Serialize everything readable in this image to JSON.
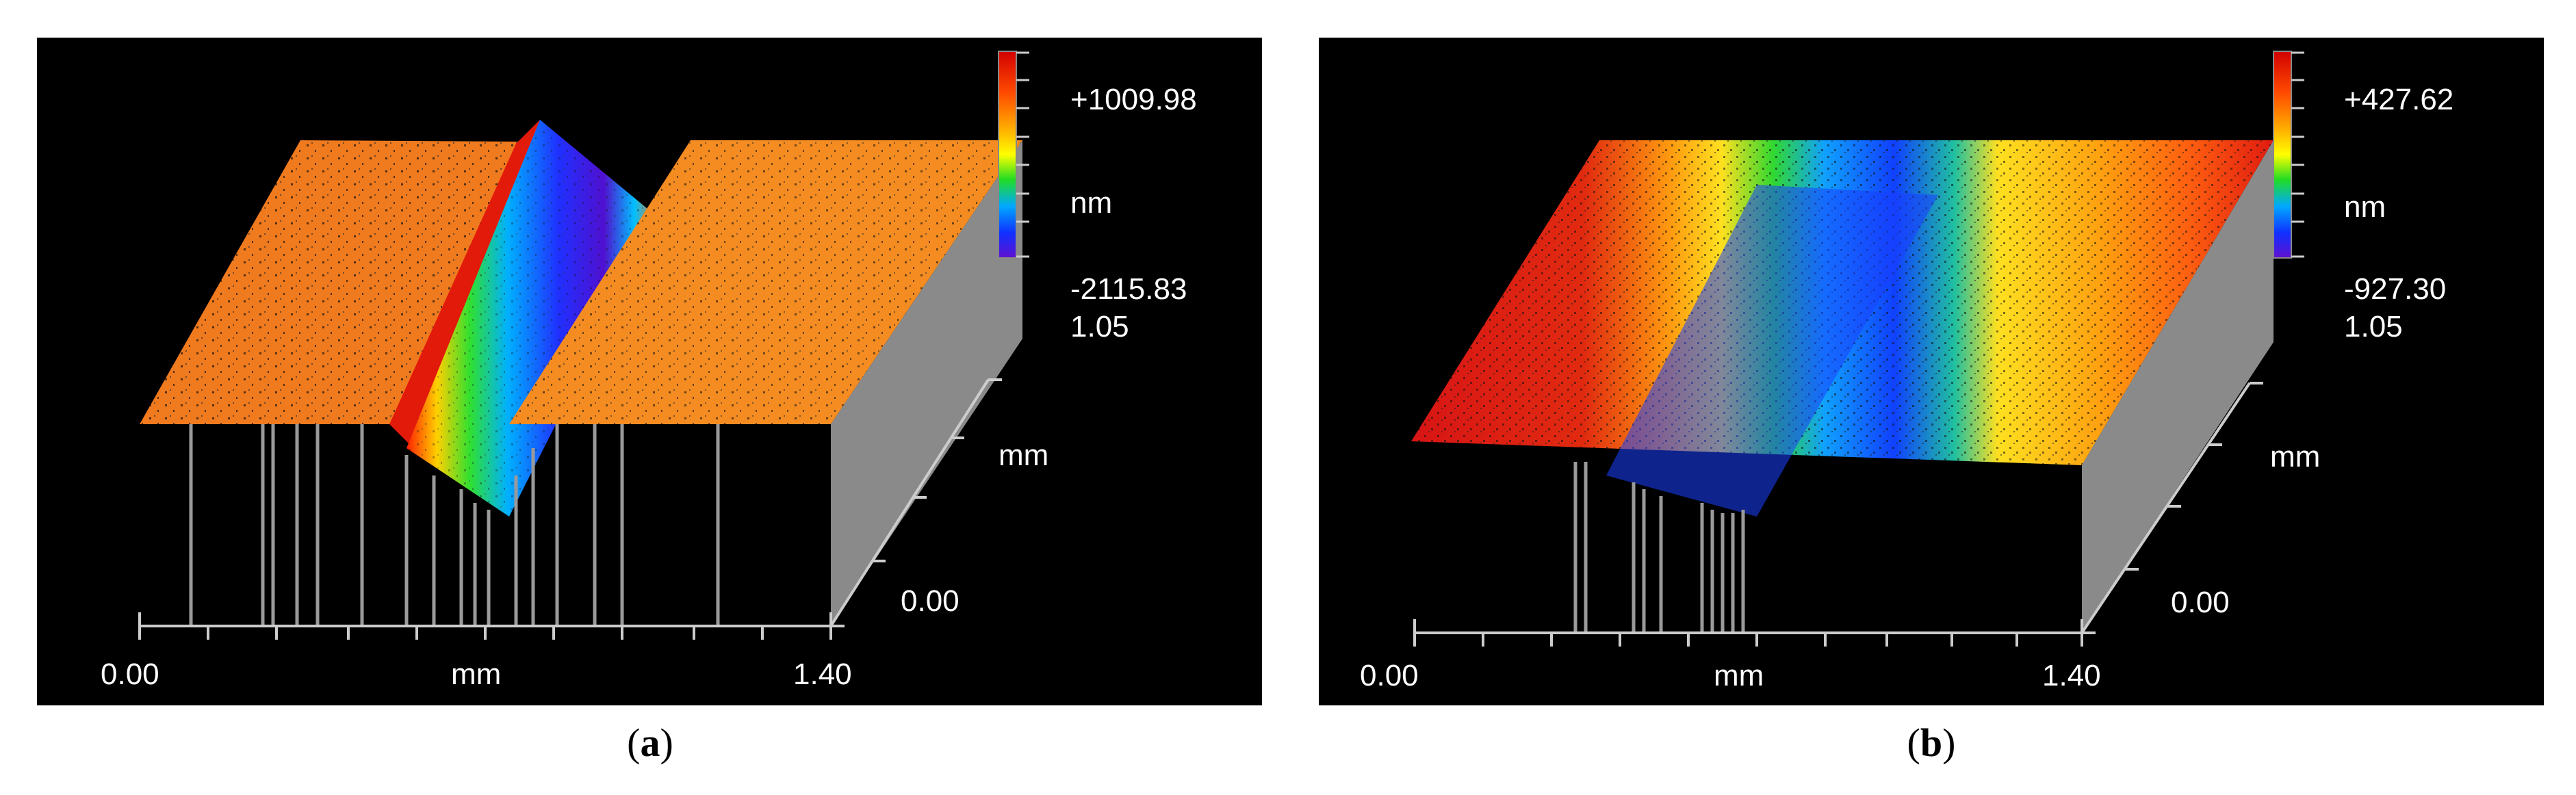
{
  "figure": {
    "panels": [
      {
        "id": "a",
        "caption_open": "(",
        "caption_letter": "a",
        "caption_close": ")",
        "scale": {
          "max": "+1009.98",
          "unit": "nm",
          "min": "-2115.83"
        },
        "y_axis": {
          "max": "1.05",
          "unit": "mm",
          "min": "0.00"
        },
        "x_axis": {
          "min": "0.00",
          "unit": "mm",
          "max": "1.40"
        }
      },
      {
        "id": "b",
        "caption_open": "(",
        "caption_letter": "b",
        "caption_close": ")",
        "scale": {
          "max": "+427.62",
          "unit": "nm",
          "min": "-927.30"
        },
        "y_axis": {
          "max": "1.05",
          "unit": "mm",
          "min": "0.00"
        },
        "x_axis": {
          "min": "0.00",
          "unit": "mm",
          "max": "1.40"
        }
      }
    ]
  },
  "colors": {
    "background": "#000000",
    "flat_a": "#f07a1e",
    "flat_b_high": "#d81515",
    "flat_b_mid": "#ff9a10",
    "scale_gradient": [
      "#d10000",
      "#ff4000",
      "#ffa000",
      "#ffff00",
      "#22dd22",
      "#00b0ff",
      "#1030ff",
      "#6010d0"
    ],
    "axis": "#9a9a9a"
  }
}
